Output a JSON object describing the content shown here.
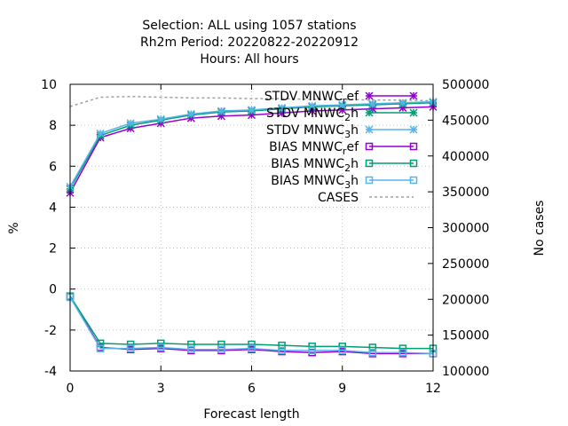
{
  "chart_data": {
    "type": "line",
    "title_lines": [
      "Selection: ALL using  1057 stations",
      "Rh2m   Period: 20220822-20220912",
      "Hours:  All hours"
    ],
    "xlabel": "Forecast length",
    "ylabel": "%",
    "y2label": "No cases",
    "xlim": [
      0,
      12
    ],
    "ylim": [
      -4,
      10
    ],
    "y2lim": [
      100000,
      500000
    ],
    "xticks": [
      0,
      3,
      6,
      9,
      12
    ],
    "yticks": [
      -4,
      -2,
      0,
      2,
      4,
      6,
      8,
      10
    ],
    "y2ticks": [
      100000,
      150000,
      200000,
      250000,
      300000,
      350000,
      400000,
      450000,
      500000
    ],
    "grid": true,
    "legend_position": "top-right",
    "x": [
      0,
      1,
      2,
      3,
      4,
      5,
      6,
      7,
      8,
      9,
      10,
      11,
      12
    ],
    "series": [
      {
        "name": "STDV MNWC_ref",
        "label_main": "STDV MNWC",
        "label_sub": "r",
        "label_tail": "ef",
        "axis": "y",
        "marker": "star",
        "color": "#9400d3",
        "values": [
          4.7,
          7.4,
          7.85,
          8.1,
          8.35,
          8.45,
          8.5,
          8.6,
          8.7,
          8.75,
          8.8,
          8.85,
          8.9
        ]
      },
      {
        "name": "STDV MNWC_2h",
        "label_main": "STDV MNWC",
        "label_sub": "2",
        "label_tail": "h",
        "axis": "y",
        "marker": "star",
        "color": "#009e73",
        "values": [
          4.9,
          7.5,
          8.0,
          8.25,
          8.5,
          8.65,
          8.7,
          8.8,
          8.9,
          8.95,
          9.0,
          9.05,
          9.1
        ]
      },
      {
        "name": "STDV MNWC_3h",
        "label_main": "STDV MNWC",
        "label_sub": "3",
        "label_tail": "h",
        "axis": "y",
        "marker": "star",
        "color": "#56b4e9",
        "values": [
          5.0,
          7.6,
          8.1,
          8.3,
          8.55,
          8.7,
          8.75,
          8.85,
          8.95,
          9.0,
          9.05,
          9.1,
          9.15
        ]
      },
      {
        "name": "BIAS MNWC_ref",
        "label_main": "BIAS MNWC",
        "label_sub": "r",
        "label_tail": "ef",
        "axis": "y",
        "marker": "square",
        "color": "#9400d3",
        "values": [
          -0.35,
          -2.85,
          -2.95,
          -2.9,
          -3.0,
          -3.0,
          -2.95,
          -3.05,
          -3.1,
          -3.05,
          -3.15,
          -3.15,
          -3.15
        ]
      },
      {
        "name": "BIAS MNWC_2h",
        "label_main": "BIAS MNWC",
        "label_sub": "2",
        "label_tail": "h",
        "axis": "y",
        "marker": "square",
        "color": "#009e73",
        "values": [
          -0.35,
          -2.65,
          -2.7,
          -2.65,
          -2.7,
          -2.7,
          -2.7,
          -2.75,
          -2.8,
          -2.8,
          -2.85,
          -2.9,
          -2.9
        ]
      },
      {
        "name": "BIAS MNWC_3h",
        "label_main": "BIAS MNWC",
        "label_sub": "3",
        "label_tail": "h",
        "axis": "y",
        "marker": "square",
        "color": "#56b4e9",
        "values": [
          -0.4,
          -2.9,
          -2.9,
          -2.85,
          -2.95,
          -2.95,
          -2.9,
          -3.0,
          -3.0,
          -3.0,
          -3.1,
          -3.1,
          -3.15
        ]
      },
      {
        "name": "CASES",
        "label_main": "CASES",
        "label_sub": "",
        "label_tail": "",
        "axis": "y2",
        "marker": "none",
        "color": "#a0a0a0",
        "dashed": true,
        "values": [
          469000,
          482000,
          483000,
          482000,
          481000,
          481000,
          480000,
          480000,
          479000,
          479000,
          478000,
          478000,
          477000
        ]
      }
    ]
  }
}
